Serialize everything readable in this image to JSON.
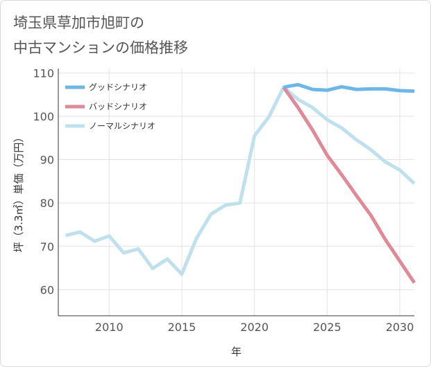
{
  "title_line1": "埼玉県草加市旭町の",
  "title_line2": "中古マンションの価格推移",
  "chart_data": {
    "type": "line",
    "title": "埼玉県草加市旭町の中古マンションの価格推移",
    "xlabel": "年",
    "ylabel": "坪（3.3㎡）単価（万円）",
    "xlim": [
      2006.5,
      2031
    ],
    "ylim": [
      54,
      111
    ],
    "xticks": [
      2010,
      2015,
      2020,
      2025,
      2030
    ],
    "yticks": [
      60,
      70,
      80,
      90,
      100,
      110
    ],
    "grid": true,
    "legend_position": "top-left",
    "series": [
      {
        "name": "グッドシナリオ",
        "color": "#6cb6e8",
        "x": [
          2022,
          2023,
          2024,
          2025,
          2026,
          2027,
          2028,
          2029,
          2030,
          2031
        ],
        "y": [
          106.7,
          107.3,
          106.2,
          106.0,
          106.8,
          106.2,
          106.3,
          106.3,
          105.9,
          105.8
        ]
      },
      {
        "name": "バッドシナリオ",
        "color": "#df8a96",
        "x": [
          2022,
          2023,
          2024,
          2025,
          2026,
          2027,
          2028,
          2029,
          2030,
          2031
        ],
        "y": [
          106.7,
          102.0,
          96.8,
          91.0,
          86.5,
          81.8,
          77.2,
          71.6,
          66.6,
          61.6
        ]
      },
      {
        "name": "ノーマルシナリオ",
        "color": "#bfe0ed",
        "x": [
          2007,
          2008,
          2009,
          2010,
          2011,
          2012,
          2013,
          2014,
          2015,
          2016,
          2017,
          2018,
          2019,
          2020,
          2021,
          2022,
          2023,
          2024,
          2025,
          2026,
          2027,
          2028,
          2029,
          2030,
          2031
        ],
        "y": [
          72.5,
          73.3,
          71.2,
          72.4,
          68.5,
          69.4,
          64.9,
          67.1,
          63.6,
          71.8,
          77.4,
          79.5,
          80.0,
          95.5,
          99.9,
          106.7,
          103.9,
          102.0,
          99.2,
          97.3,
          94.6,
          92.3,
          89.5,
          87.6,
          84.5
        ]
      }
    ]
  }
}
